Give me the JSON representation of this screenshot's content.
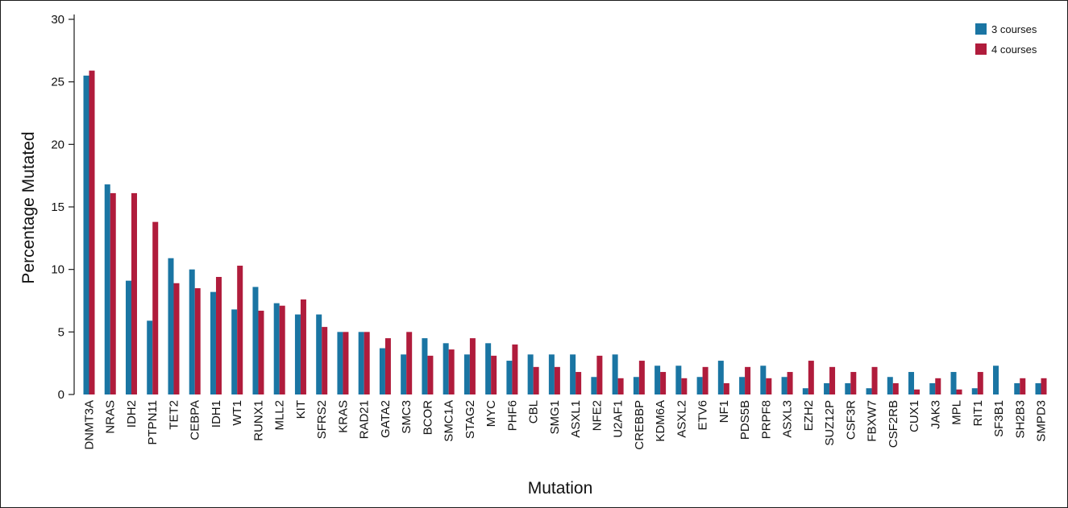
{
  "chart_data": {
    "type": "bar",
    "title": "",
    "xlabel": "Mutation",
    "ylabel": "Percentage Mutated",
    "ylim": [
      0,
      30
    ],
    "yticks": [
      0,
      5,
      10,
      15,
      20,
      25,
      30
    ],
    "grid": false,
    "legend_position": "top-right",
    "categories": [
      "DNMT3A",
      "NRAS",
      "IDH2",
      "PTPN11",
      "TET2",
      "CEBPA",
      "IDH1",
      "WT1",
      "RUNX1",
      "MLL2",
      "KIT",
      "SFRS2",
      "KRAS",
      "RAD21",
      "GATA2",
      "SMC3",
      "BCOR",
      "SMC1A",
      "STAG2",
      "MYC",
      "PHF6",
      "CBL",
      "SMG1",
      "ASXL1",
      "NFE2",
      "U2AF1",
      "CREBBP",
      "KDM6A",
      "ASXL2",
      "ETV6",
      "NF1",
      "PDS5B",
      "PRPF8",
      "ASXL3",
      "EZH2",
      "SUZ12P",
      "CSF3R",
      "FBXW7",
      "CSF2RB",
      "CUX1",
      "JAK3",
      "MPL",
      "RIT1",
      "SF3B1",
      "SH2B3",
      "SMPD3"
    ],
    "series": [
      {
        "name": "3 courses",
        "color": "#1a75a3",
        "values": [
          25.5,
          16.8,
          9.1,
          5.9,
          10.9,
          10.0,
          8.2,
          6.8,
          8.6,
          7.3,
          6.4,
          6.4,
          5.0,
          5.0,
          3.7,
          3.2,
          4.5,
          4.1,
          3.2,
          4.1,
          2.7,
          3.2,
          3.2,
          3.2,
          1.4,
          3.2,
          1.4,
          2.3,
          2.3,
          1.4,
          2.7,
          1.4,
          2.3,
          1.4,
          0.5,
          0.9,
          0.9,
          0.5,
          1.4,
          1.8,
          0.9,
          1.8,
          0.5,
          2.3,
          0.9,
          0.9
        ]
      },
      {
        "name": "4 courses",
        "color": "#b01c3c",
        "values": [
          25.9,
          16.1,
          16.1,
          13.8,
          8.9,
          8.5,
          9.4,
          10.3,
          6.7,
          7.1,
          7.6,
          5.4,
          5.0,
          5.0,
          4.5,
          5.0,
          3.1,
          3.6,
          4.5,
          3.1,
          4.0,
          2.2,
          2.2,
          1.8,
          3.1,
          1.3,
          2.7,
          1.8,
          1.3,
          2.2,
          0.9,
          2.2,
          1.3,
          1.8,
          2.7,
          2.2,
          1.8,
          2.2,
          0.9,
          0.4,
          1.3,
          0.4,
          1.8,
          0.0,
          1.3,
          1.3
        ]
      }
    ]
  }
}
